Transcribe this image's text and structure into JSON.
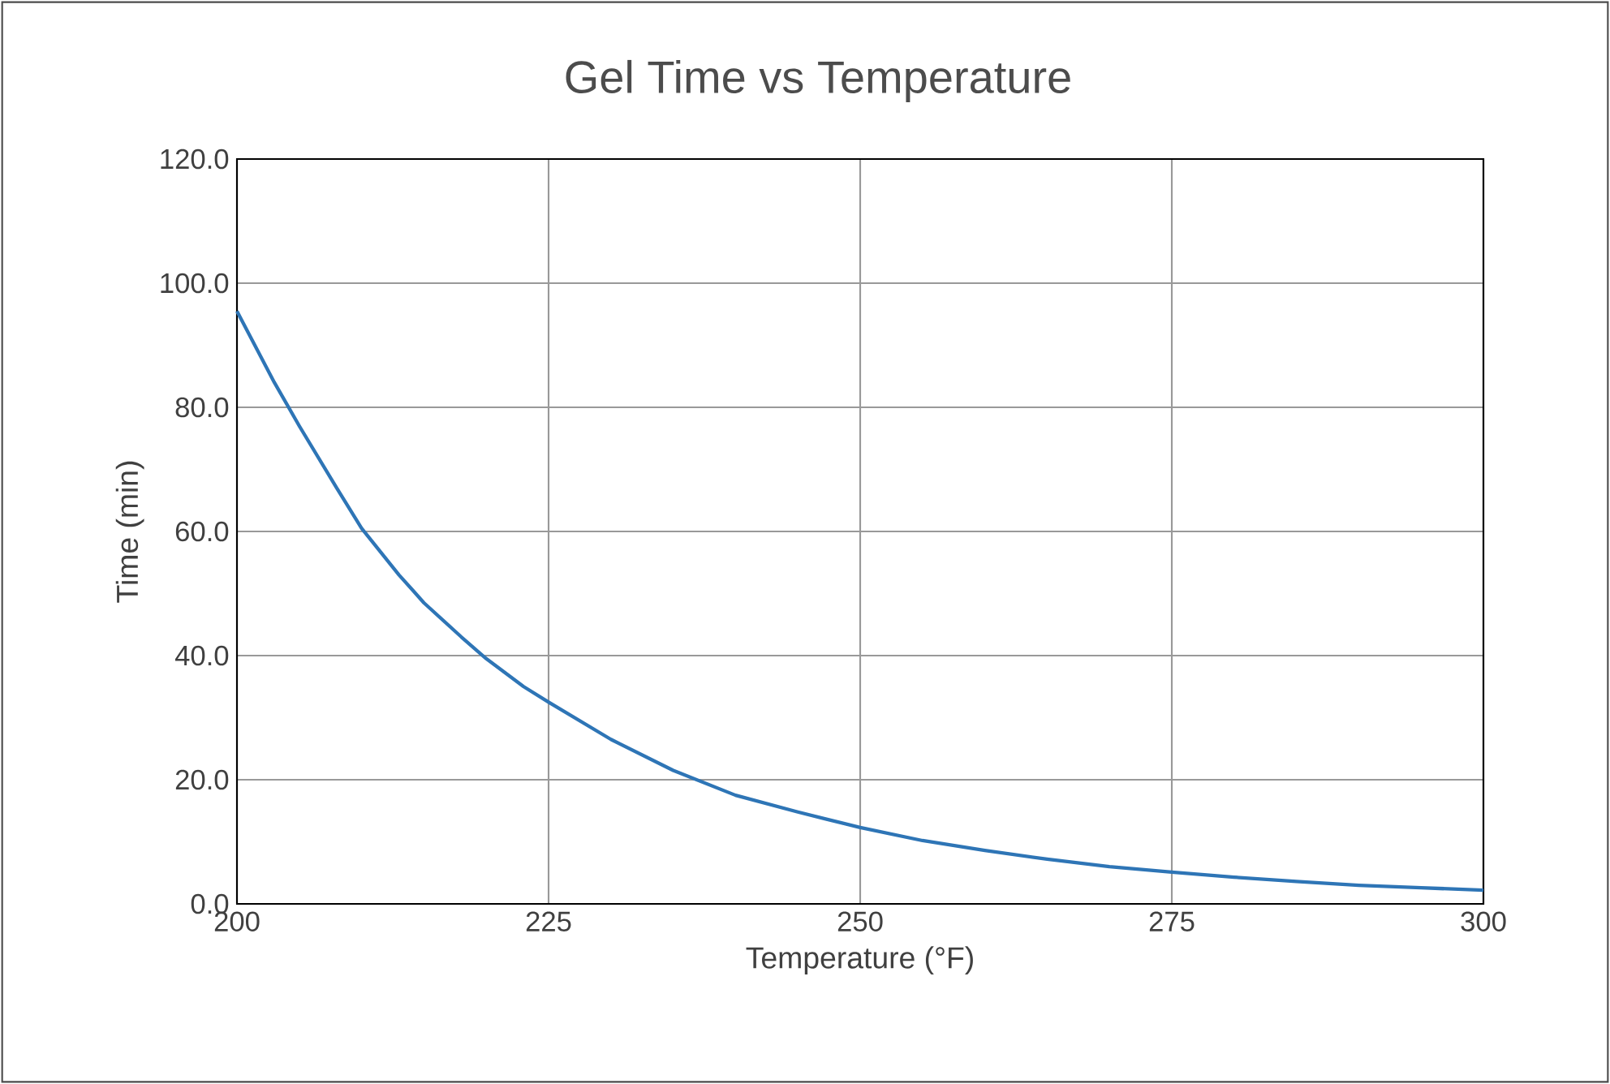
{
  "chart_data": {
    "type": "line",
    "title": "Gel Time vs Temperature",
    "xlabel": "Temperature (°F)",
    "ylabel": "Time (min)",
    "x": [
      200,
      203,
      205,
      208,
      210,
      213,
      215,
      218,
      220,
      223,
      225,
      230,
      235,
      240,
      245,
      250,
      255,
      260,
      265,
      270,
      275,
      280,
      285,
      290,
      295,
      300
    ],
    "series": [
      {
        "color": "#2e75b6",
        "values": [
          95.5,
          84,
          77,
          67,
          60.5,
          53,
          48.5,
          43,
          39.5,
          35,
          32.5,
          26.5,
          21.5,
          17.5,
          14.8,
          12.3,
          10.2,
          8.6,
          7.2,
          6.0,
          5.1,
          4.3,
          3.6,
          3.0,
          2.6,
          2.2
        ]
      }
    ],
    "xlim": [
      200,
      300
    ],
    "xticks": [
      200,
      225,
      250,
      275,
      300
    ],
    "ylim": [
      0,
      120
    ],
    "yticks": [
      {
        "value": 0,
        "label": "0.0"
      },
      {
        "value": 20,
        "label": "20.0"
      },
      {
        "value": 40,
        "label": "40.0"
      },
      {
        "value": 60,
        "label": "60.0"
      },
      {
        "value": 80,
        "label": "80.0"
      },
      {
        "value": 100,
        "label": "100.0"
      },
      {
        "value": 120,
        "label": "120.0"
      }
    ],
    "grid": true,
    "marker": "none",
    "line_style": "solid"
  }
}
